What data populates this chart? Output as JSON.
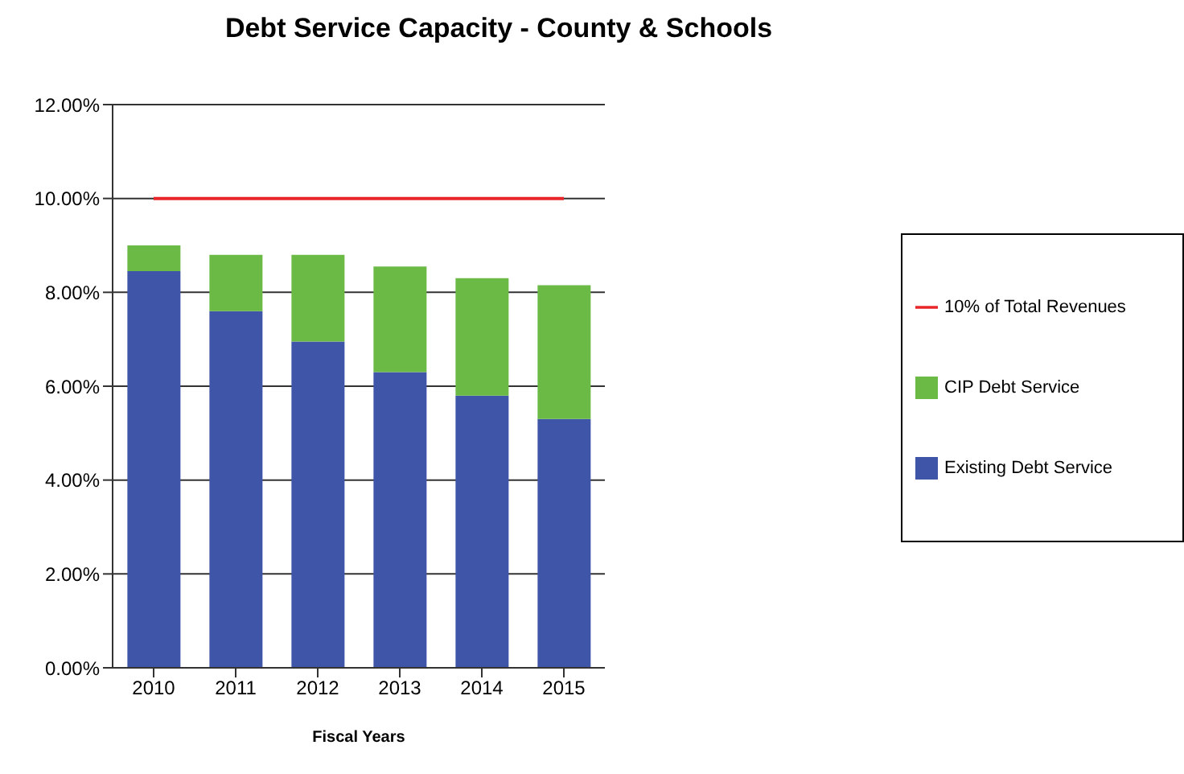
{
  "chart_data": {
    "type": "bar",
    "title": "Debt Service Capacity - County & Schools",
    "xlabel": "Fiscal Years",
    "categories": [
      "2010",
      "2011",
      "2012",
      "2013",
      "2014",
      "2015"
    ],
    "stacked": true,
    "series": [
      {
        "name": "Existing Debt Service",
        "color": "#3f55a8",
        "values": [
          8.45,
          7.6,
          6.95,
          6.3,
          5.8,
          5.3
        ]
      },
      {
        "name": "CIP Debt Service",
        "color": "#6aba45",
        "values": [
          0.55,
          1.2,
          1.85,
          2.25,
          2.5,
          2.85
        ]
      },
      {
        "name": "10% of Total Revenues",
        "type": "line",
        "color": "#e8262a",
        "values": [
          10,
          10,
          10,
          10,
          10,
          10
        ]
      }
    ],
    "ylim": [
      0,
      12
    ],
    "yticks": [
      {
        "value": 0,
        "label": "0.00%"
      },
      {
        "value": 2,
        "label": "2.00%"
      },
      {
        "value": 4,
        "label": "4.00%"
      },
      {
        "value": 6,
        "label": "6.00%"
      },
      {
        "value": 8,
        "label": "8.00%"
      },
      {
        "value": 10,
        "label": "10.00%"
      },
      {
        "value": 12,
        "label": "12.00%"
      }
    ],
    "grid": "y",
    "legend": "right",
    "marker": "none"
  }
}
